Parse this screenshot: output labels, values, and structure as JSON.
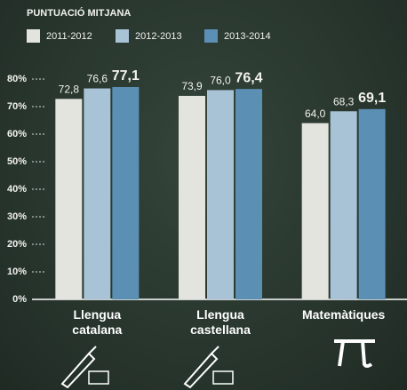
{
  "chart_data": {
    "type": "bar",
    "title": "PUNTUACIÓ MITJANA",
    "categories": [
      "Llengua catalana",
      "Llengua castellana",
      "Matemàtiques"
    ],
    "series": [
      {
        "name": "2011-2012",
        "color": "#e4e4df",
        "values": [
          72.8,
          73.9,
          64.0
        ],
        "value_labels": [
          "72,8",
          "73,9",
          "64,0"
        ]
      },
      {
        "name": "2012-2013",
        "color": "#a8c3d6",
        "values": [
          76.6,
          76.0,
          68.3
        ],
        "value_labels": [
          "76,6",
          "76,0",
          "68,3"
        ]
      },
      {
        "name": "2013-2014",
        "color": "#5b8fb4",
        "values": [
          77.1,
          76.4,
          69.1
        ],
        "value_labels": [
          "77,1",
          "76,4",
          "69,1"
        ]
      }
    ],
    "ylim": [
      0,
      80
    ],
    "yticks": [
      {
        "value": 0,
        "label": "0%"
      },
      {
        "value": 10,
        "label": "10%"
      },
      {
        "value": 20,
        "label": "20%"
      },
      {
        "value": 30,
        "label": "30%"
      },
      {
        "value": 40,
        "label": "40%"
      },
      {
        "value": 50,
        "label": "50%"
      },
      {
        "value": 60,
        "label": "60%"
      },
      {
        "value": 70,
        "label": "70%"
      },
      {
        "value": 80,
        "label": "80%"
      }
    ],
    "grid": false
  }
}
